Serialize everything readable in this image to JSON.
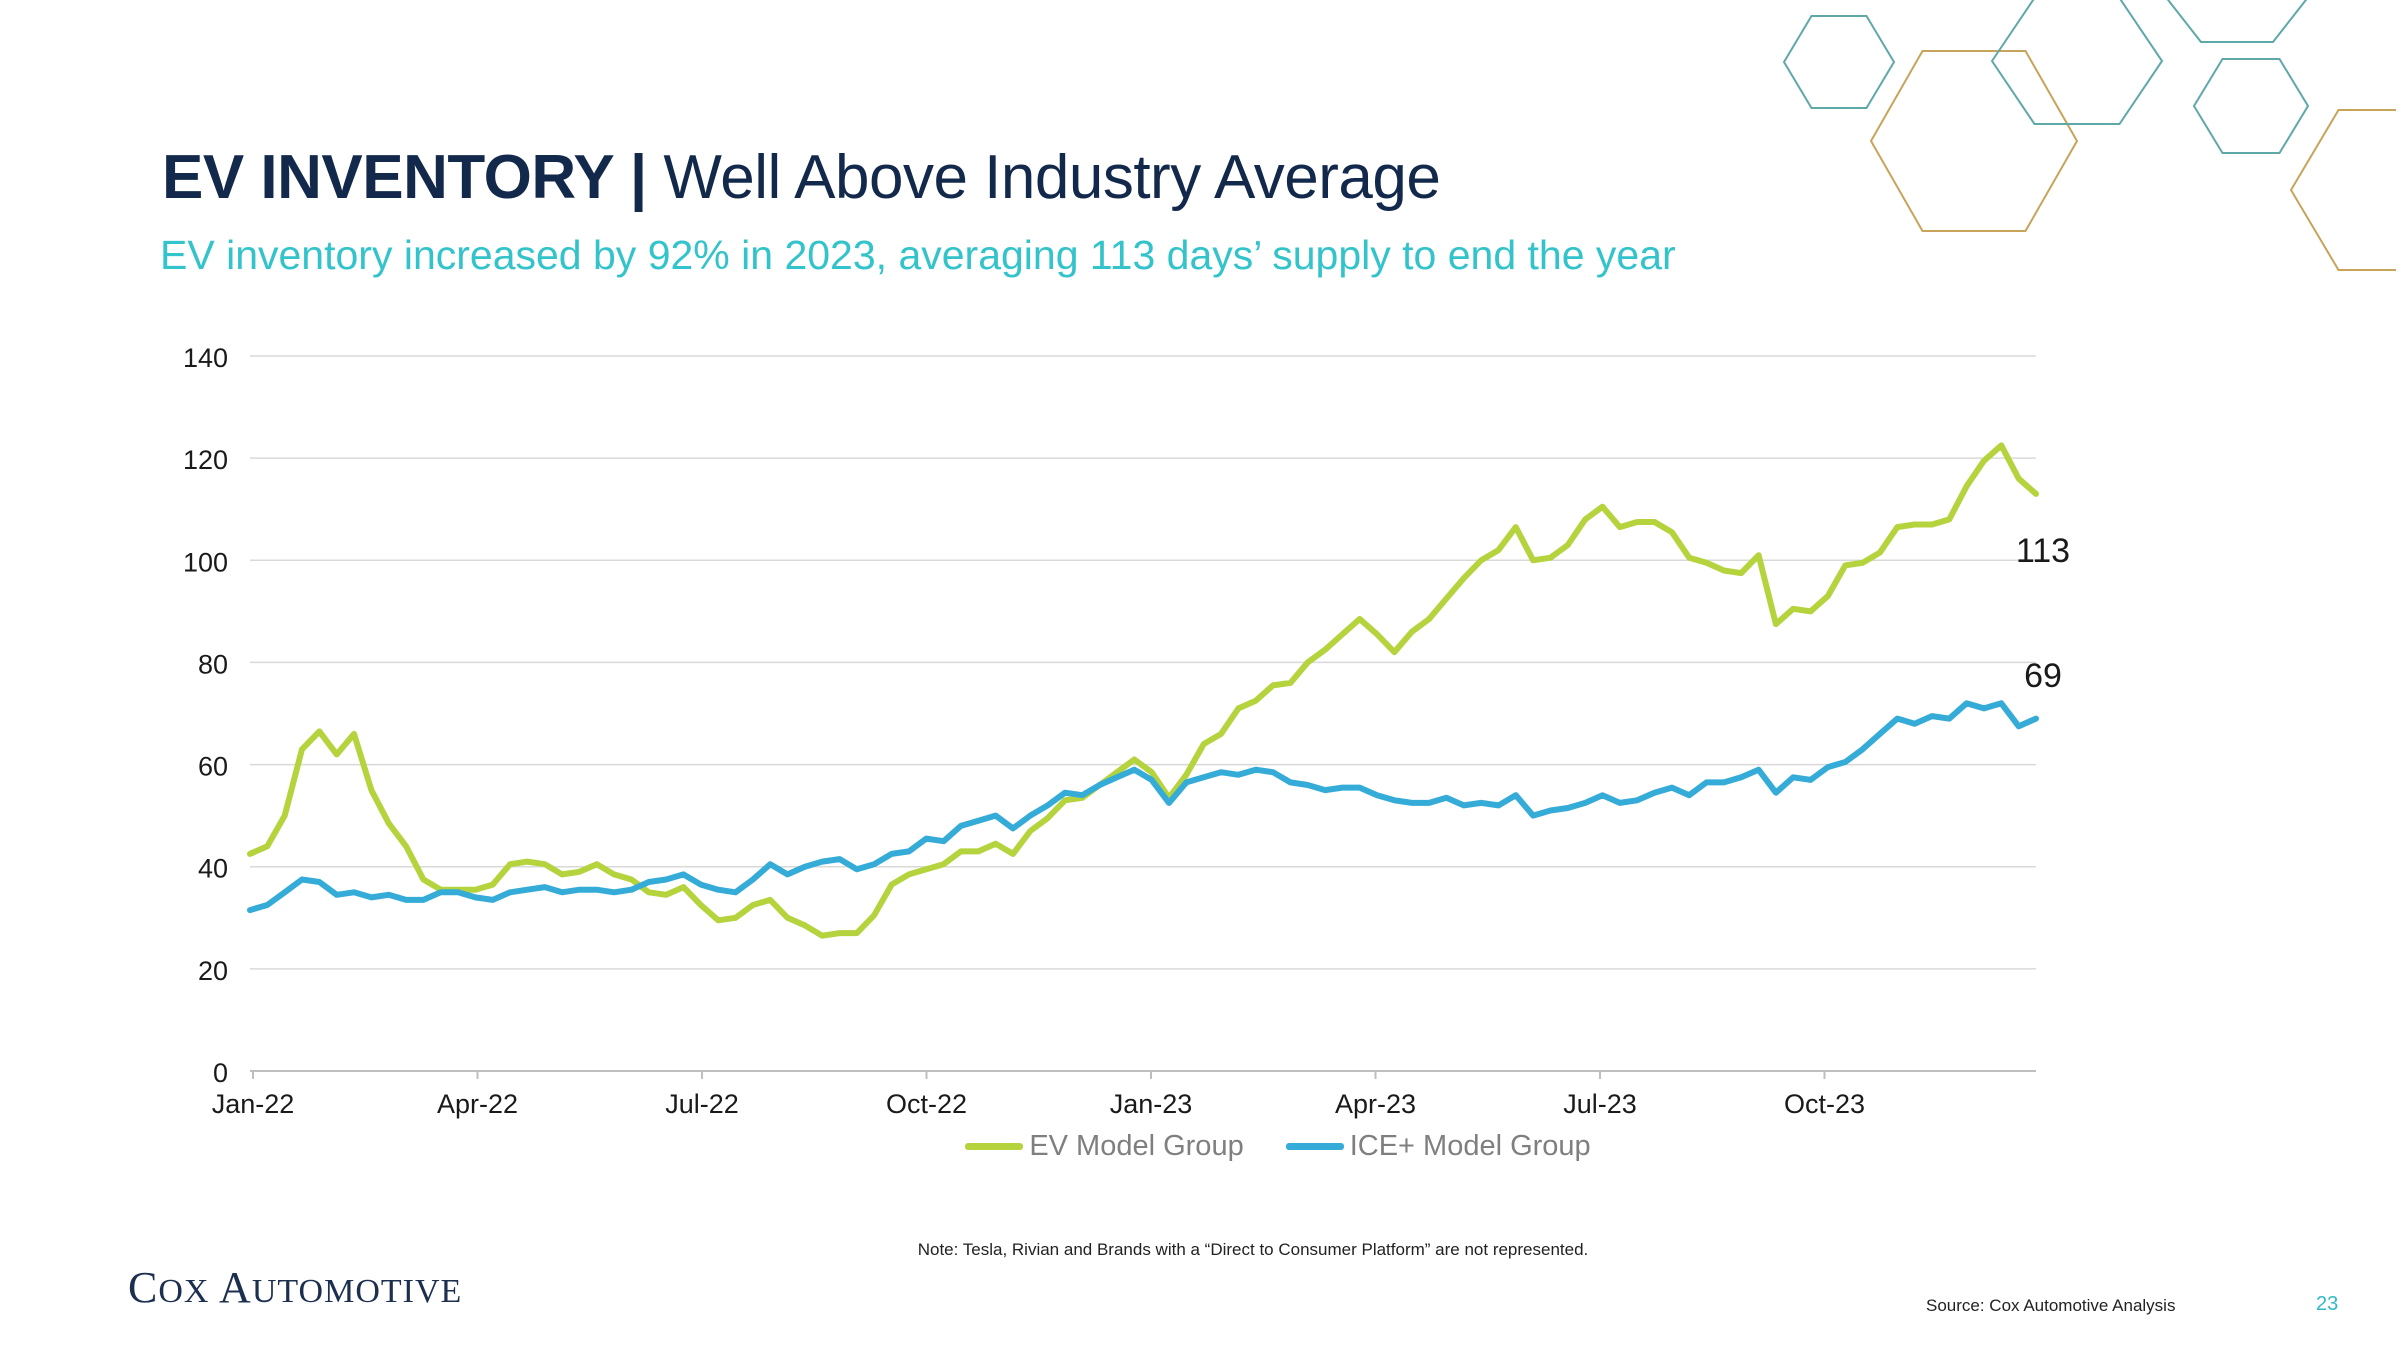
{
  "slide": {
    "title_bold": "EV INVENTORY |",
    "title_light": " Well Above Industry Average",
    "subtitle": "EV inventory increased by 92% in 2023, averaging 113 days’ supply to end the year",
    "note": "Note: Tesla, Rivian and Brands with a “Direct to Consumer Platform” are not represented.",
    "brand": {
      "first": "C",
      "first_rest": "OX",
      "second": "A",
      "second_rest": "UTOMOTIVE"
    },
    "source": "Source: Cox Automotive Analysis",
    "page_number": "23"
  },
  "colors": {
    "title": "#13294b",
    "subtitle": "#33c3ca",
    "ev": "#b5d33d",
    "ice": "#35acd8",
    "grid": "#d9d9d9",
    "axis": "#bfbfbf",
    "hex_teal": "#5fa8a8",
    "hex_gold": "#c8a35a"
  },
  "chart_data": {
    "type": "line",
    "ylim": [
      0,
      140
    ],
    "yticks": [
      0,
      20,
      40,
      60,
      80,
      100,
      120,
      140
    ],
    "xlabels": [
      "Jan-22",
      "Apr-22",
      "Jul-22",
      "Oct-22",
      "Jan-23",
      "Apr-23",
      "Jul-23",
      "Oct-23"
    ],
    "xlabel": "",
    "ylabel": "",
    "grid": true,
    "legend_position": "bottom",
    "end_labels": [
      "113",
      "69"
    ],
    "series": [
      {
        "name": "EV Model Group",
        "color": "#b5d33d",
        "values": [
          42.5,
          44,
          50,
          63,
          66.5,
          62,
          66,
          55,
          48.5,
          44,
          37.5,
          35.5,
          35.5,
          35.5,
          36.5,
          40.5,
          41,
          40.5,
          38.5,
          39,
          40.5,
          38.5,
          37.5,
          35,
          34.5,
          36,
          32.5,
          29.5,
          30,
          32.5,
          33.5,
          30,
          28.5,
          26.5,
          27,
          27,
          30.5,
          36.5,
          38.5,
          39.5,
          40.5,
          43,
          43,
          44.5,
          42.5,
          47,
          49.5,
          53,
          53.5,
          56,
          58.5,
          61,
          58.5,
          53.5,
          58,
          64,
          66,
          71,
          72.5,
          75.5,
          76,
          80,
          82.5,
          85.5,
          88.5,
          85.5,
          82,
          86,
          88.5,
          92.5,
          96.5,
          100,
          102,
          106.5,
          100,
          100.5,
          103,
          108,
          110.5,
          106.5,
          107.5,
          107.5,
          105.5,
          100.5,
          99.5,
          98,
          97.5,
          101,
          87.5,
          90.5,
          90,
          93,
          99,
          99.5,
          101.5,
          106.5,
          107,
          107,
          108,
          114.5,
          119.5,
          122.5,
          116,
          113
        ]
      },
      {
        "name": "ICE+ Model Group",
        "color": "#35acd8",
        "values": [
          31.5,
          32.5,
          35,
          37.5,
          37,
          34.5,
          35,
          34,
          34.5,
          33.5,
          33.5,
          35,
          35,
          34,
          33.5,
          35,
          35.5,
          36,
          35,
          35.5,
          35.5,
          35,
          35.5,
          37,
          37.5,
          38.5,
          36.5,
          35.5,
          35,
          37.5,
          40.5,
          38.5,
          40,
          41,
          41.5,
          39.5,
          40.5,
          42.5,
          43,
          45.5,
          45,
          48,
          49,
          50,
          47.5,
          50,
          52,
          54.5,
          54,
          56,
          57.5,
          59,
          57,
          52.5,
          56.5,
          57.5,
          58.5,
          58,
          59,
          58.5,
          56.5,
          56,
          55,
          55.5,
          55.5,
          54,
          53,
          52.5,
          52.5,
          53.5,
          52,
          52.5,
          52,
          54,
          50,
          51,
          51.5,
          52.5,
          54,
          52.5,
          53,
          54.5,
          55.5,
          54,
          56.5,
          56.5,
          57.5,
          59,
          54.5,
          57.5,
          57,
          59.5,
          60.5,
          63,
          66,
          69,
          68,
          69.5,
          69,
          72,
          71,
          72,
          67.5,
          69
        ]
      }
    ]
  }
}
